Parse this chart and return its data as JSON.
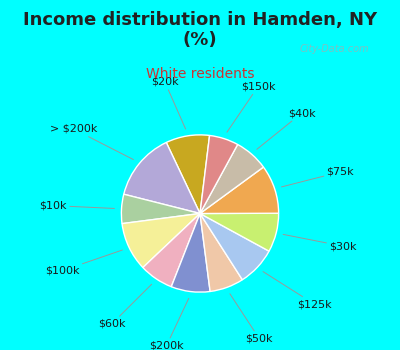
{
  "title": "Income distribution in Hamden, NY\n(%)",
  "subtitle": "White residents",
  "fig_bg": "#00ffff",
  "chart_bg_color": "#e8f5ee",
  "labels": [
    "$20k",
    "> $200k",
    "$10k",
    "$100k",
    "$60k",
    "$200k",
    "$50k",
    "$125k",
    "$30k",
    "$75k",
    "$40k",
    "$150k"
  ],
  "values": [
    9,
    14,
    6,
    10,
    7,
    8,
    7,
    8,
    8,
    10,
    7,
    6
  ],
  "colors": [
    "#c8a820",
    "#b3a8d8",
    "#aad0a0",
    "#f5f098",
    "#f0b0c0",
    "#8090d0",
    "#f0c8a8",
    "#a8c8f0",
    "#c8f070",
    "#f0a850",
    "#c8bca8",
    "#e08888"
  ],
  "startangle": 83,
  "title_fontsize": 13,
  "subtitle_fontsize": 10,
  "label_fontsize": 8,
  "title_color": "#222222",
  "subtitle_color": "#cc3333",
  "watermark": "City-Data.com",
  "watermark_color": "#aaaaaa"
}
